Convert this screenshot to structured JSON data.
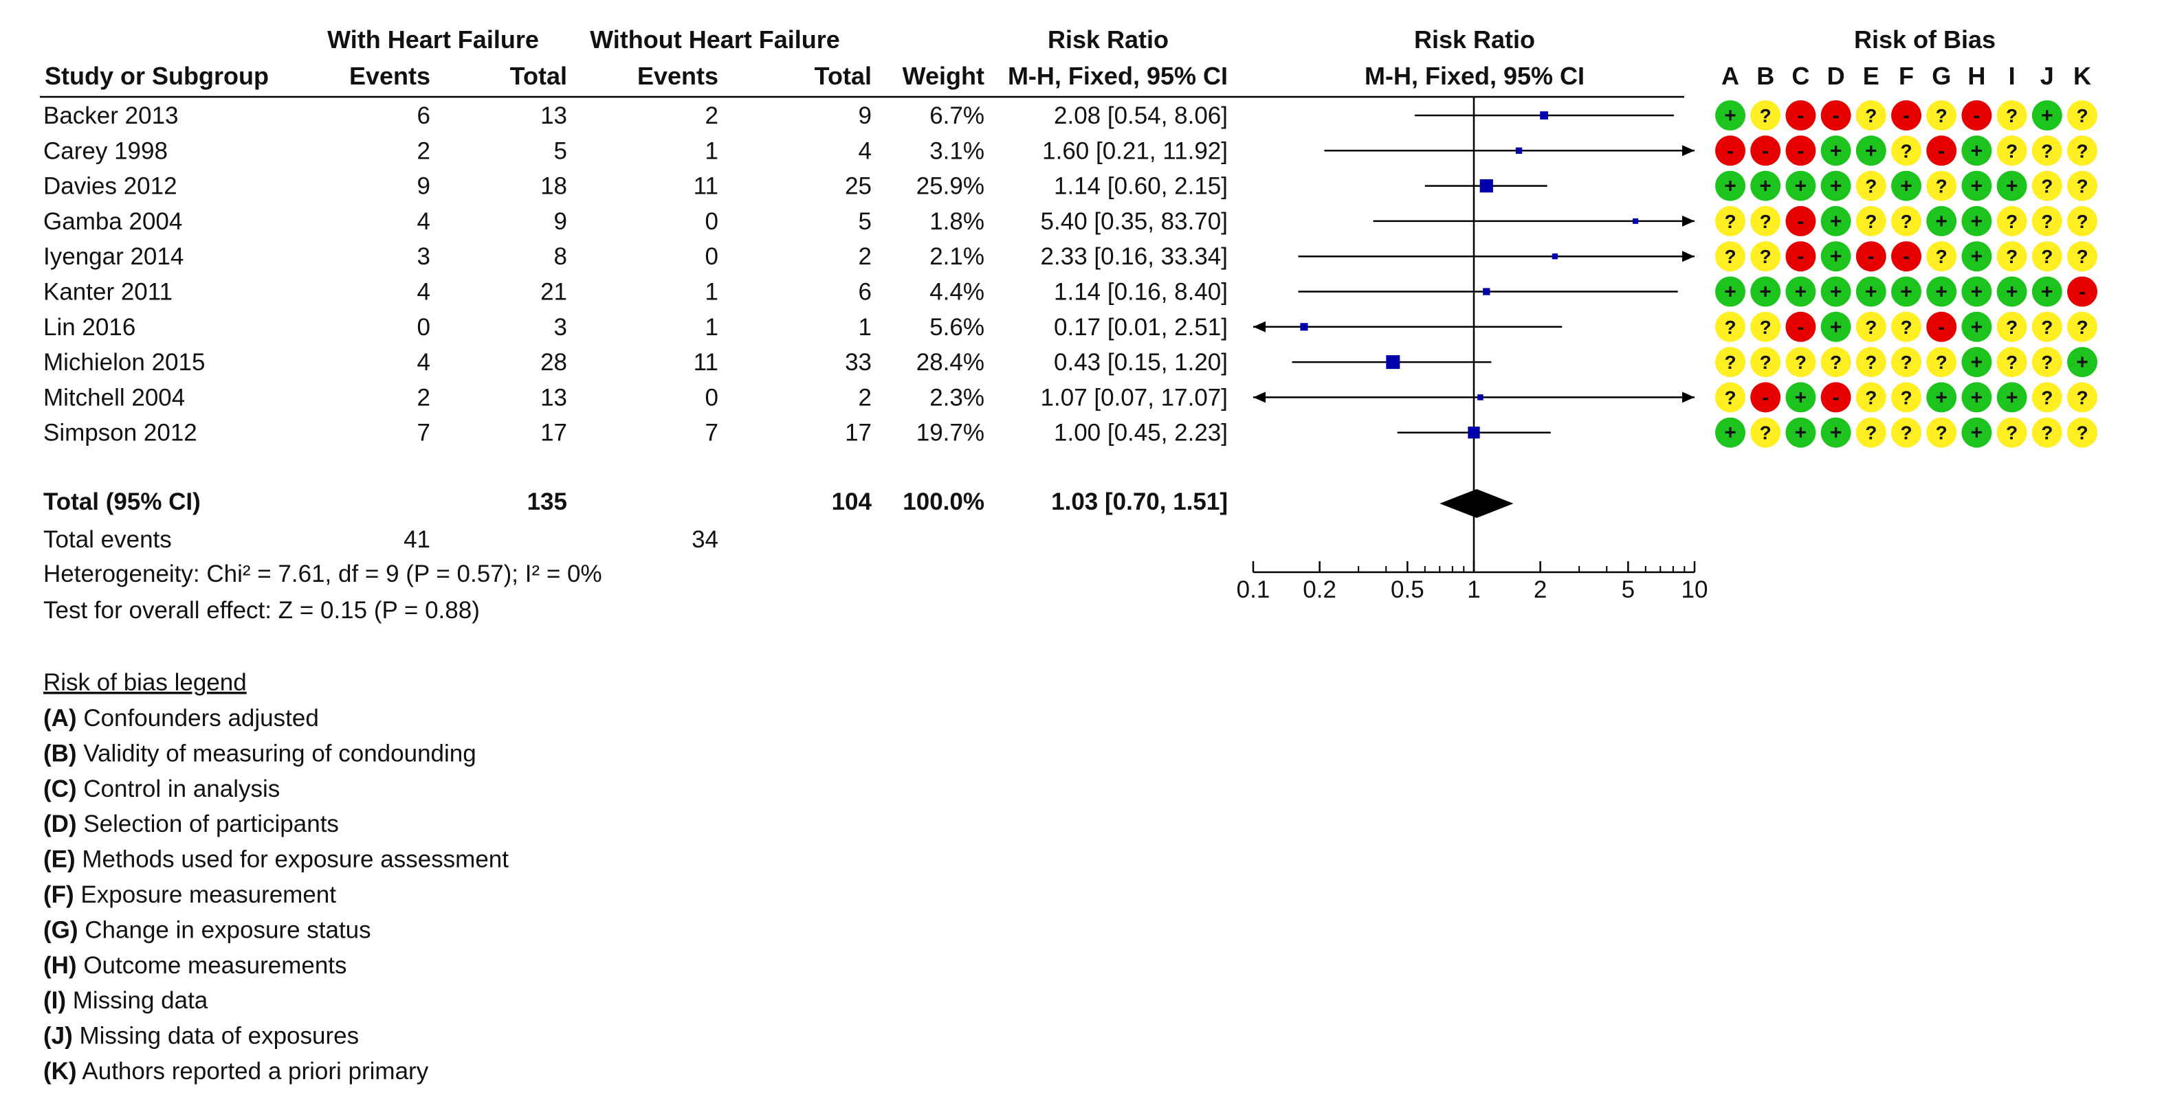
{
  "headers": {
    "group1": "With Heart Failure",
    "group2": "Without Heart Failure",
    "rr_numeric": "Risk Ratio",
    "rr_plot": "Risk Ratio",
    "rob": "Risk of Bias",
    "study": "Study or Subgroup",
    "events1": "Events",
    "total1": "Total",
    "events2": "Events",
    "total2": "Total",
    "weight": "Weight",
    "method": "M-H, Fixed, 95% CI",
    "method_plot": "M-H, Fixed, 95% CI",
    "rob_letters": [
      "A",
      "B",
      "C",
      "D",
      "E",
      "F",
      "G",
      "H",
      "I",
      "J",
      "K"
    ]
  },
  "studies": [
    {
      "name": "Backer 2013",
      "e1": "6",
      "t1": "13",
      "e2": "2",
      "t2": "9",
      "weight": "6.7%",
      "ci_text": "2.08 [0.54, 8.06]",
      "rr": 2.08,
      "lo": 0.54,
      "hi": 8.06,
      "w": 6.7,
      "rob": [
        "+",
        "?",
        "-",
        "-",
        "?",
        "-",
        "?",
        "-",
        "?",
        "+",
        "?"
      ]
    },
    {
      "name": "Carey 1998",
      "e1": "2",
      "t1": "5",
      "e2": "1",
      "t2": "4",
      "weight": "3.1%",
      "ci_text": "1.60 [0.21, 11.92]",
      "rr": 1.6,
      "lo": 0.21,
      "hi": 11.92,
      "w": 3.1,
      "rob": [
        "-",
        "-",
        "-",
        "+",
        "+",
        "?",
        "-",
        "+",
        "?",
        "?",
        "?"
      ]
    },
    {
      "name": "Davies 2012",
      "e1": "9",
      "t1": "18",
      "e2": "11",
      "t2": "25",
      "weight": "25.9%",
      "ci_text": "1.14 [0.60, 2.15]",
      "rr": 1.14,
      "lo": 0.6,
      "hi": 2.15,
      "w": 25.9,
      "rob": [
        "+",
        "+",
        "+",
        "+",
        "?",
        "+",
        "?",
        "+",
        "+",
        "?",
        "?"
      ]
    },
    {
      "name": "Gamba 2004",
      "e1": "4",
      "t1": "9",
      "e2": "0",
      "t2": "5",
      "weight": "1.8%",
      "ci_text": "5.40 [0.35, 83.70]",
      "rr": 5.4,
      "lo": 0.35,
      "hi": 83.7,
      "w": 1.8,
      "rob": [
        "?",
        "?",
        "-",
        "+",
        "?",
        "?",
        "+",
        "+",
        "?",
        "?",
        "?"
      ]
    },
    {
      "name": "Iyengar 2014",
      "e1": "3",
      "t1": "8",
      "e2": "0",
      "t2": "2",
      "weight": "2.1%",
      "ci_text": "2.33 [0.16, 33.34]",
      "rr": 2.33,
      "lo": 0.16,
      "hi": 33.34,
      "w": 2.1,
      "rob": [
        "?",
        "?",
        "-",
        "+",
        "-",
        "-",
        "?",
        "+",
        "?",
        "?",
        "?"
      ]
    },
    {
      "name": "Kanter 2011",
      "e1": "4",
      "t1": "21",
      "e2": "1",
      "t2": "6",
      "weight": "4.4%",
      "ci_text": "1.14 [0.16, 8.40]",
      "rr": 1.14,
      "lo": 0.16,
      "hi": 8.4,
      "w": 4.4,
      "rob": [
        "+",
        "+",
        "+",
        "+",
        "+",
        "+",
        "+",
        "+",
        "+",
        "+",
        "-"
      ]
    },
    {
      "name": "Lin 2016",
      "e1": "0",
      "t1": "3",
      "e2": "1",
      "t2": "1",
      "weight": "5.6%",
      "ci_text": "0.17 [0.01, 2.51]",
      "rr": 0.17,
      "lo": 0.01,
      "hi": 2.51,
      "w": 5.6,
      "rob": [
        "?",
        "?",
        "-",
        "+",
        "?",
        "?",
        "-",
        "+",
        "?",
        "?",
        "?"
      ]
    },
    {
      "name": "Michielon 2015",
      "e1": "4",
      "t1": "28",
      "e2": "11",
      "t2": "33",
      "weight": "28.4%",
      "ci_text": "0.43 [0.15, 1.20]",
      "rr": 0.43,
      "lo": 0.15,
      "hi": 1.2,
      "w": 28.4,
      "rob": [
        "?",
        "?",
        "?",
        "?",
        "?",
        "?",
        "?",
        "+",
        "?",
        "?",
        "+"
      ]
    },
    {
      "name": "Mitchell 2004",
      "e1": "2",
      "t1": "13",
      "e2": "0",
      "t2": "2",
      "weight": "2.3%",
      "ci_text": "1.07 [0.07, 17.07]",
      "rr": 1.07,
      "lo": 0.07,
      "hi": 17.07,
      "w": 2.3,
      "rob": [
        "?",
        "-",
        "+",
        "-",
        "?",
        "?",
        "+",
        "+",
        "+",
        "?",
        "?"
      ]
    },
    {
      "name": "Simpson 2012",
      "e1": "7",
      "t1": "17",
      "e2": "7",
      "t2": "17",
      "weight": "19.7%",
      "ci_text": "1.00 [0.45, 2.23]",
      "rr": 1.0,
      "lo": 0.45,
      "hi": 2.23,
      "w": 19.7,
      "rob": [
        "+",
        "?",
        "+",
        "+",
        "?",
        "?",
        "?",
        "+",
        "?",
        "?",
        "?"
      ]
    }
  ],
  "total": {
    "label": "Total (95% CI)",
    "t1": "135",
    "t2": "104",
    "weight": "100.0%",
    "ci_text": "1.03 [0.70, 1.51]",
    "rr": 1.03,
    "lo": 0.7,
    "hi": 1.51
  },
  "total_events": {
    "label": "Total events",
    "e1": "41",
    "e2": "34"
  },
  "heterogeneity": "Heterogeneity: Chi² = 7.61, df = 9 (P = 0.57); I² = 0%",
  "overall_effect": "Test for overall effect: Z = 0.15 (P = 0.88)",
  "chart_data": {
    "type": "forest",
    "scale": "log",
    "xlim": [
      0.1,
      10
    ],
    "ticks": [
      "0.1",
      "0.2",
      "0.5",
      "1",
      "2",
      "5",
      "10"
    ],
    "tick_values": [
      0.1,
      0.2,
      0.5,
      1,
      2,
      5,
      10
    ],
    "reference_value": 1
  },
  "legend": {
    "title": "Risk of bias legend",
    "items": [
      {
        "code": "(A)",
        "text": "Confounders adjusted"
      },
      {
        "code": "(B)",
        "text": "Validity of measuring of condounding"
      },
      {
        "code": "(C)",
        "text": "Control in analysis"
      },
      {
        "code": "(D)",
        "text": "Selection of participants"
      },
      {
        "code": "(E)",
        "text": "Methods used for exposure assessment"
      },
      {
        "code": "(F)",
        "text": "Exposure measurement"
      },
      {
        "code": "(G)",
        "text": "Change in exposure status"
      },
      {
        "code": "(H)",
        "text": "Outcome measurements"
      },
      {
        "code": "(I)",
        "text": "Missing data"
      },
      {
        "code": "(J)",
        "text": "Missing data of exposures"
      },
      {
        "code": "(K)",
        "text": "Authors reported a priori primary"
      }
    ]
  },
  "colors": {
    "low": "#1ec41e",
    "unclear": "#ffee22",
    "high": "#e60000",
    "square": "#0000aa",
    "diamond": "#000000"
  }
}
